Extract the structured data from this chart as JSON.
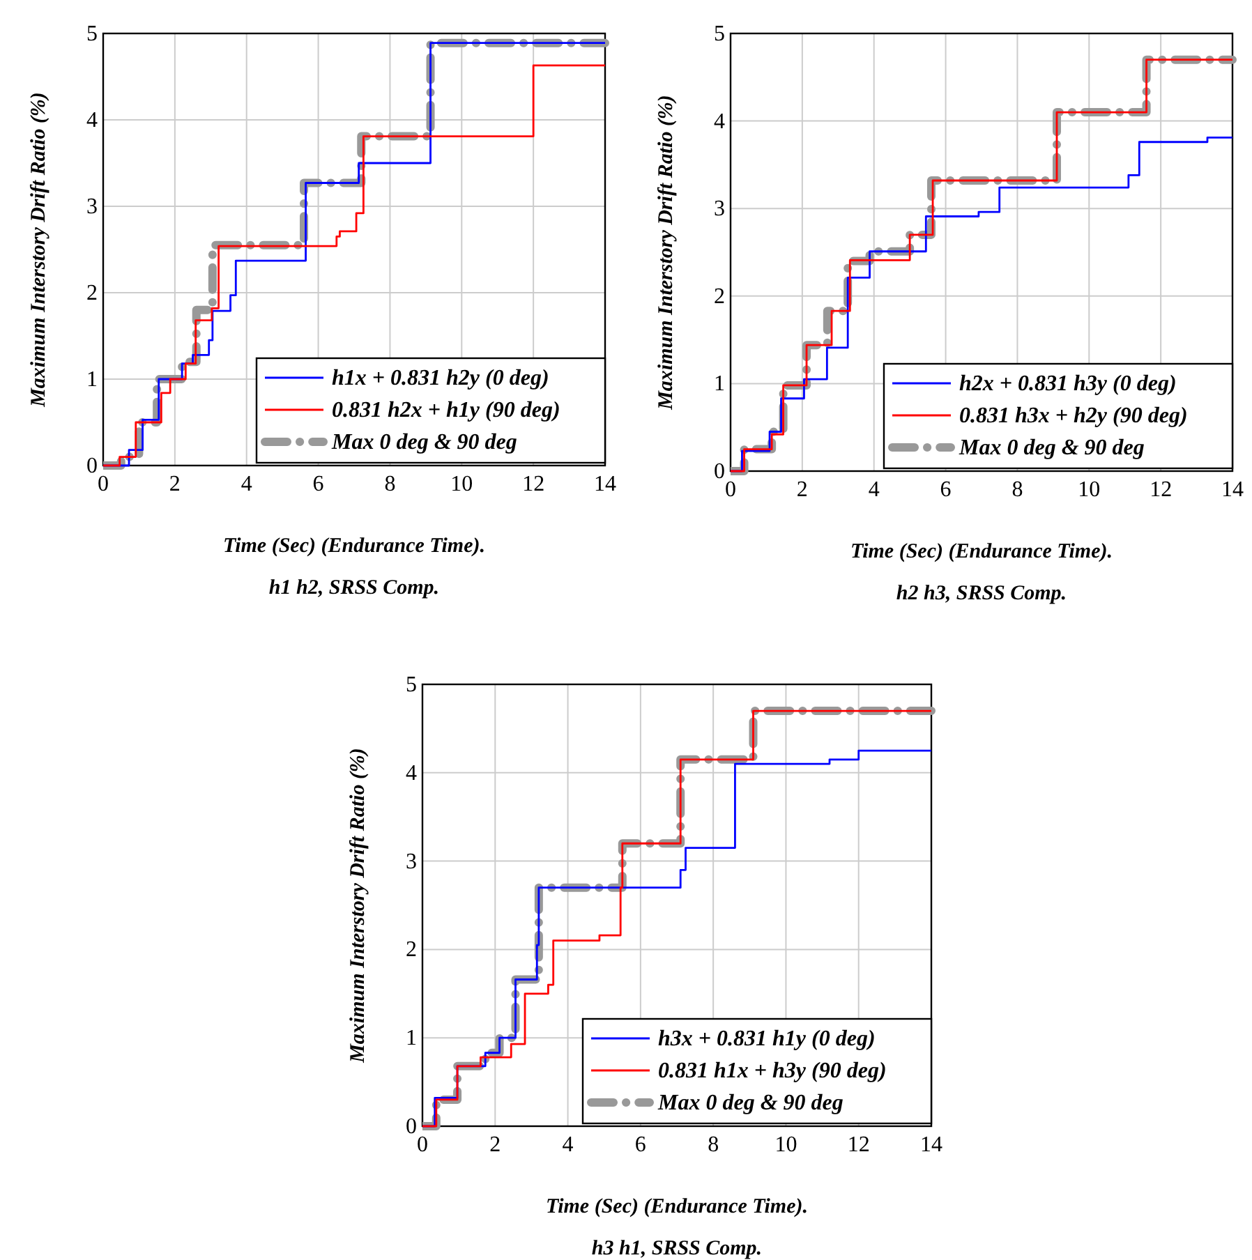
{
  "chart_data": [
    {
      "type": "step",
      "title": "h1 h2, SRSS Comp.",
      "xlabel": "Time (Sec) (Endurance Time).",
      "ylabel": "Maximum Interstory Drift Ratio (%)",
      "xlim": [
        0,
        14
      ],
      "ylim": [
        0,
        5
      ],
      "xticks": [
        0,
        2,
        4,
        6,
        8,
        10,
        12,
        14
      ],
      "yticks": [
        0,
        1,
        2,
        3,
        4,
        5
      ],
      "grid": true,
      "legend": "bottom right",
      "series": [
        {
          "name": "h1x + 0.831 h2y (0 deg)",
          "color": "#0000ff",
          "line_style": "solid",
          "x": [
            0,
            0.72,
            1.1,
            1.55,
            2.2,
            2.5,
            2.95,
            3.05,
            3.55,
            3.7,
            5.65,
            7.13,
            9.13,
            14
          ],
          "values": [
            0,
            0.18,
            0.53,
            1.0,
            1.18,
            1.28,
            1.45,
            1.79,
            1.97,
            2.37,
            3.27,
            3.5,
            4.89,
            4.89
          ]
        },
        {
          "name": "0.831 h2x + h1y (90 deg)",
          "color": "#ff0000",
          "line_style": "solid",
          "x": [
            0,
            0.46,
            0.91,
            1.62,
            1.87,
            2.3,
            2.58,
            3.03,
            3.22,
            6.51,
            6.6,
            7.06,
            7.26,
            12.0,
            14
          ],
          "values": [
            0,
            0.1,
            0.5,
            0.84,
            1.0,
            1.18,
            1.68,
            1.82,
            2.54,
            2.65,
            2.71,
            2.92,
            3.81,
            4.63,
            4.63
          ]
        },
        {
          "name": "Max 0 deg & 90 deg",
          "color": "#999999",
          "line_style": "dashed",
          "x": [
            0,
            0.5,
            1.0,
            1.5,
            2.2,
            2.6,
            3.05,
            5.6,
            7.2,
            9.13,
            14
          ],
          "values": [
            0,
            0.1,
            0.5,
            1.0,
            1.2,
            1.8,
            2.55,
            3.27,
            3.81,
            4.89,
            4.89
          ]
        }
      ]
    },
    {
      "type": "step",
      "title": "h2 h3, SRSS Comp.",
      "xlabel": "Time (Sec) (Endurance Time).",
      "ylabel": "Maximum Interstory Drift Ratio (%)",
      "xlim": [
        0,
        14
      ],
      "ylim": [
        0,
        5
      ],
      "xticks": [
        0,
        2,
        4,
        6,
        8,
        10,
        12,
        14
      ],
      "yticks": [
        0,
        1,
        2,
        3,
        4,
        5
      ],
      "grid": true,
      "legend": "bottom right",
      "series": [
        {
          "name": "h2x + 0.831 h3y (0 deg)",
          "color": "#0000ff",
          "line_style": "solid",
          "x": [
            0,
            0.32,
            1.09,
            1.41,
            2.05,
            2.69,
            3.27,
            3.88,
            5.45,
            6.92,
            7.5,
            11.1,
            11.4,
            13.3,
            14
          ],
          "values": [
            0,
            0.23,
            0.45,
            0.83,
            1.05,
            1.41,
            2.21,
            2.51,
            2.91,
            2.96,
            3.24,
            3.38,
            3.76,
            3.81,
            3.81
          ]
        },
        {
          "name": "0.831 h3x + h2y (90 deg)",
          "color": "#ff0000",
          "line_style": "solid",
          "x": [
            0,
            0.38,
            1.15,
            1.47,
            2.12,
            2.82,
            3.33,
            5.0,
            5.64,
            9.1,
            11.6,
            14
          ],
          "values": [
            0,
            0.25,
            0.42,
            0.98,
            1.44,
            1.83,
            2.41,
            2.7,
            3.32,
            4.1,
            4.7,
            4.7
          ]
        },
        {
          "name": "Max 0 deg & 90 deg",
          "color": "#999999",
          "line_style": "dashed",
          "x": [
            0,
            0.38,
            1.15,
            1.47,
            2.12,
            2.7,
            3.27,
            3.88,
            5.0,
            5.6,
            9.1,
            11.6,
            14
          ],
          "values": [
            0,
            0.25,
            0.45,
            0.98,
            1.44,
            1.83,
            2.4,
            2.51,
            2.7,
            3.32,
            4.1,
            4.7,
            4.7
          ]
        }
      ]
    },
    {
      "type": "step",
      "title": "h3 h1, SRSS Comp.",
      "xlabel": "Time (Sec) (Endurance Time).",
      "ylabel": "Maximum Interstory Drift Ratio (%)",
      "xlim": [
        0,
        14
      ],
      "ylim": [
        0,
        5
      ],
      "xticks": [
        0,
        2,
        4,
        6,
        8,
        10,
        12,
        14
      ],
      "yticks": [
        0,
        1,
        2,
        3,
        4,
        5
      ],
      "grid": true,
      "legend": "bottom right",
      "series": [
        {
          "name": "h3x + 0.831 h1y (0 deg)",
          "color": "#0000ff",
          "line_style": "solid",
          "x": [
            0,
            0.34,
            0.96,
            1.73,
            2.12,
            2.56,
            3.15,
            3.2,
            7.1,
            7.24,
            8.6,
            11.2,
            12.0,
            14
          ],
          "values": [
            0,
            0.32,
            0.68,
            0.83,
            1.0,
            1.66,
            2.05,
            2.7,
            2.9,
            3.15,
            4.1,
            4.15,
            4.25,
            4.25
          ]
        },
        {
          "name": "0.831 h1x + h3y (90 deg)",
          "color": "#ff0000",
          "line_style": "solid",
          "x": [
            0,
            0.38,
            0.96,
            1.6,
            2.44,
            2.82,
            3.46,
            3.6,
            4.87,
            5.45,
            5.5,
            7.1,
            9.1,
            14
          ],
          "values": [
            0,
            0.3,
            0.68,
            0.78,
            0.93,
            1.5,
            1.6,
            2.1,
            2.16,
            2.7,
            3.2,
            4.15,
            4.7,
            4.7
          ]
        },
        {
          "name": "Max 0 deg & 90 deg",
          "color": "#999999",
          "line_style": "dashed",
          "x": [
            0,
            0.38,
            0.96,
            1.73,
            2.12,
            2.56,
            3.2,
            5.5,
            7.1,
            9.1,
            14
          ],
          "values": [
            0,
            0.3,
            0.68,
            0.83,
            1.0,
            1.66,
            2.7,
            3.2,
            4.15,
            4.7,
            4.7
          ]
        }
      ]
    }
  ]
}
